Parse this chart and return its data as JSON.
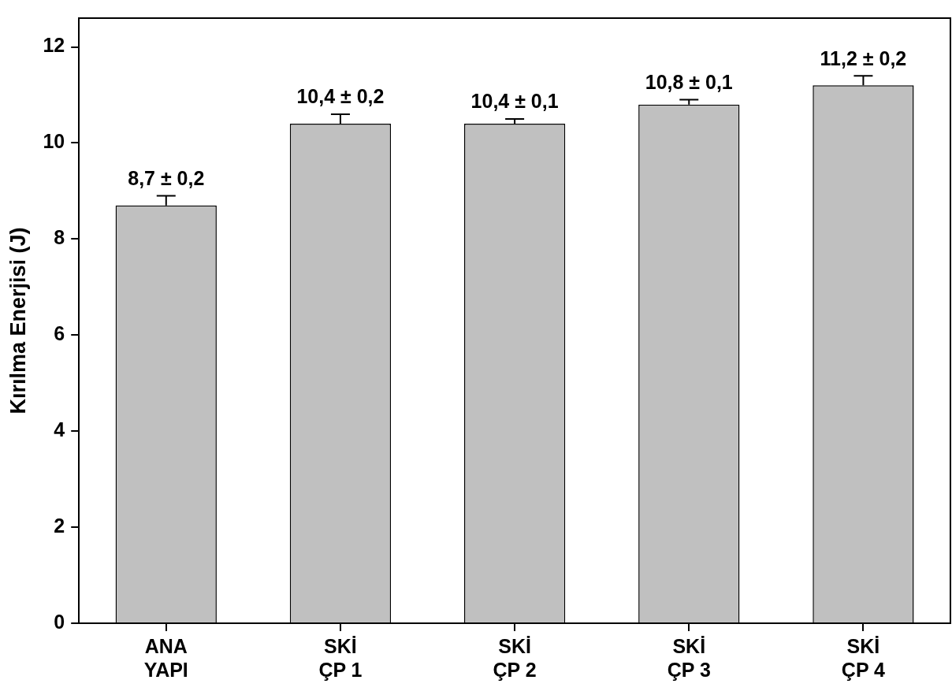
{
  "chart_data": {
    "type": "bar",
    "ylabel": "Kırılma Enerjisi (J)",
    "categories": [
      "ANA YAPI",
      "SKİ ÇP 1",
      "SKİ ÇP 2",
      "SKİ ÇP 3",
      "SKİ ÇP 4"
    ],
    "values": [
      8.7,
      10.4,
      10.4,
      10.8,
      11.2
    ],
    "errors": [
      0.2,
      0.2,
      0.1,
      0.1,
      0.2
    ],
    "value_labels": [
      "8,7 ± 0,2",
      "10,4 ± 0,2",
      "10,4 ± 0,1",
      "10,8 ± 0,1",
      "11,2 ± 0,2"
    ],
    "color": "#c0c0c0",
    "ylim": [
      0,
      12.6
    ],
    "yticks": [
      0,
      2,
      4,
      6,
      8,
      10,
      12
    ],
    "grid": false
  }
}
